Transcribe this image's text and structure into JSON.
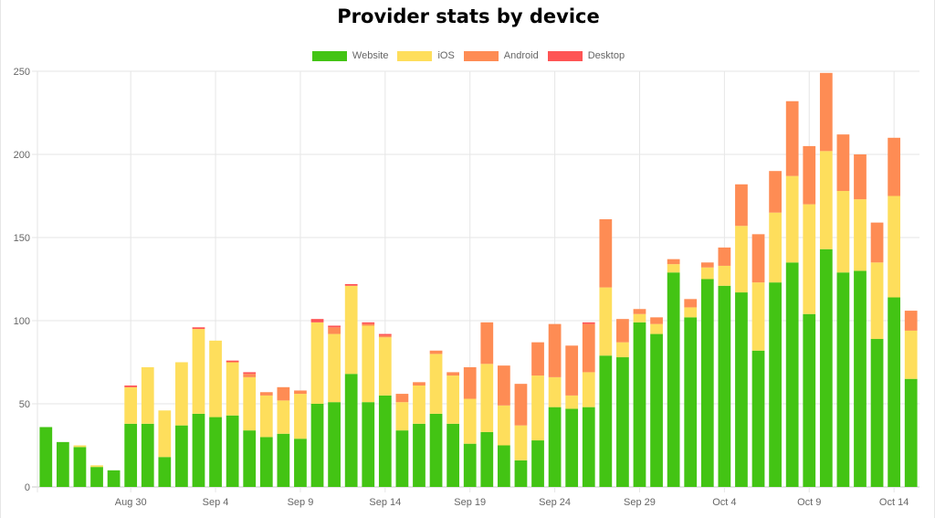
{
  "chart_data": {
    "type": "bar",
    "stacked": true,
    "title": "Provider stats by device",
    "ylim": [
      0,
      250
    ],
    "y_ticks": [
      0,
      50,
      100,
      150,
      200,
      250
    ],
    "legend_position": "top-center",
    "grid": true,
    "categories": [
      "Aug 25",
      "Aug 26",
      "Aug 27",
      "Aug 28",
      "Aug 29",
      "Aug 30",
      "Aug 31",
      "Sep 1",
      "Sep 2",
      "Sep 3",
      "Sep 4",
      "Sep 5",
      "Sep 6",
      "Sep 7",
      "Sep 8",
      "Sep 9",
      "Sep 10",
      "Sep 11",
      "Sep 12",
      "Sep 13",
      "Sep 14",
      "Sep 15",
      "Sep 16",
      "Sep 17",
      "Sep 18",
      "Sep 19",
      "Sep 20",
      "Sep 21",
      "Sep 22",
      "Sep 23",
      "Sep 24",
      "Sep 25",
      "Sep 26",
      "Sep 27",
      "Sep 28",
      "Sep 29",
      "Sep 30",
      "Oct 1",
      "Oct 2",
      "Oct 3",
      "Oct 4",
      "Oct 5",
      "Oct 6",
      "Oct 7",
      "Oct 8",
      "Oct 9",
      "Oct 10",
      "Oct 11",
      "Oct 12",
      "Oct 13",
      "Oct 14",
      "Oct 15"
    ],
    "x_tick_labels": [
      {
        "index": 5,
        "label": "Aug 30"
      },
      {
        "index": 10,
        "label": "Sep 4"
      },
      {
        "index": 15,
        "label": "Sep 9"
      },
      {
        "index": 20,
        "label": "Sep 14"
      },
      {
        "index": 25,
        "label": "Sep 19"
      },
      {
        "index": 30,
        "label": "Sep 24"
      },
      {
        "index": 35,
        "label": "Sep 29"
      },
      {
        "index": 40,
        "label": "Oct 4"
      },
      {
        "index": 45,
        "label": "Oct 9"
      },
      {
        "index": 50,
        "label": "Oct 14"
      }
    ],
    "series": [
      {
        "name": "Website",
        "color": "#43c414",
        "values": [
          36,
          27,
          24,
          12,
          10,
          38,
          38,
          18,
          37,
          44,
          42,
          43,
          34,
          30,
          32,
          29,
          50,
          51,
          68,
          51,
          55,
          34,
          38,
          44,
          38,
          26,
          33,
          25,
          16,
          28,
          48,
          47,
          48,
          79,
          78,
          99,
          92,
          129,
          102,
          125,
          121,
          117,
          82,
          123,
          135,
          104,
          143,
          129,
          130,
          89,
          114,
          65
        ]
      },
      {
        "name": "iOS",
        "color": "#fede5c",
        "values": [
          0,
          0,
          1,
          1,
          0,
          22,
          34,
          28,
          38,
          51,
          46,
          32,
          32,
          25,
          20,
          27,
          49,
          41,
          53,
          46,
          35,
          17,
          23,
          36,
          29,
          27,
          41,
          24,
          21,
          39,
          18,
          8,
          21,
          41,
          9,
          5,
          6,
          5,
          6,
          7,
          12,
          40,
          41,
          42,
          52,
          66,
          59,
          49,
          43,
          46,
          61,
          29
        ]
      },
      {
        "name": "Android",
        "color": "#fe8c54",
        "values": [
          0,
          0,
          0,
          0,
          0,
          0,
          0,
          0,
          0,
          0,
          0,
          0,
          2,
          2,
          8,
          2,
          0,
          4,
          0,
          1,
          1,
          5,
          2,
          2,
          2,
          19,
          25,
          24,
          25,
          20,
          32,
          30,
          29,
          41,
          14,
          3,
          4,
          3,
          5,
          3,
          11,
          25,
          29,
          25,
          45,
          35,
          47,
          34,
          27,
          24,
          35,
          12
        ]
      },
      {
        "name": "Desktop",
        "color": "#fe5454",
        "values": [
          0,
          0,
          0,
          0,
          0,
          1,
          0,
          0,
          0,
          1,
          0,
          1,
          1,
          0,
          0,
          0,
          2,
          1,
          1,
          1,
          1,
          0,
          0,
          0,
          0,
          0,
          0,
          0,
          0,
          0,
          0,
          0,
          1,
          0,
          0,
          0,
          0,
          0,
          0,
          0,
          0,
          0,
          0,
          0,
          0,
          0,
          0,
          0,
          0,
          0,
          0,
          0
        ]
      }
    ]
  }
}
